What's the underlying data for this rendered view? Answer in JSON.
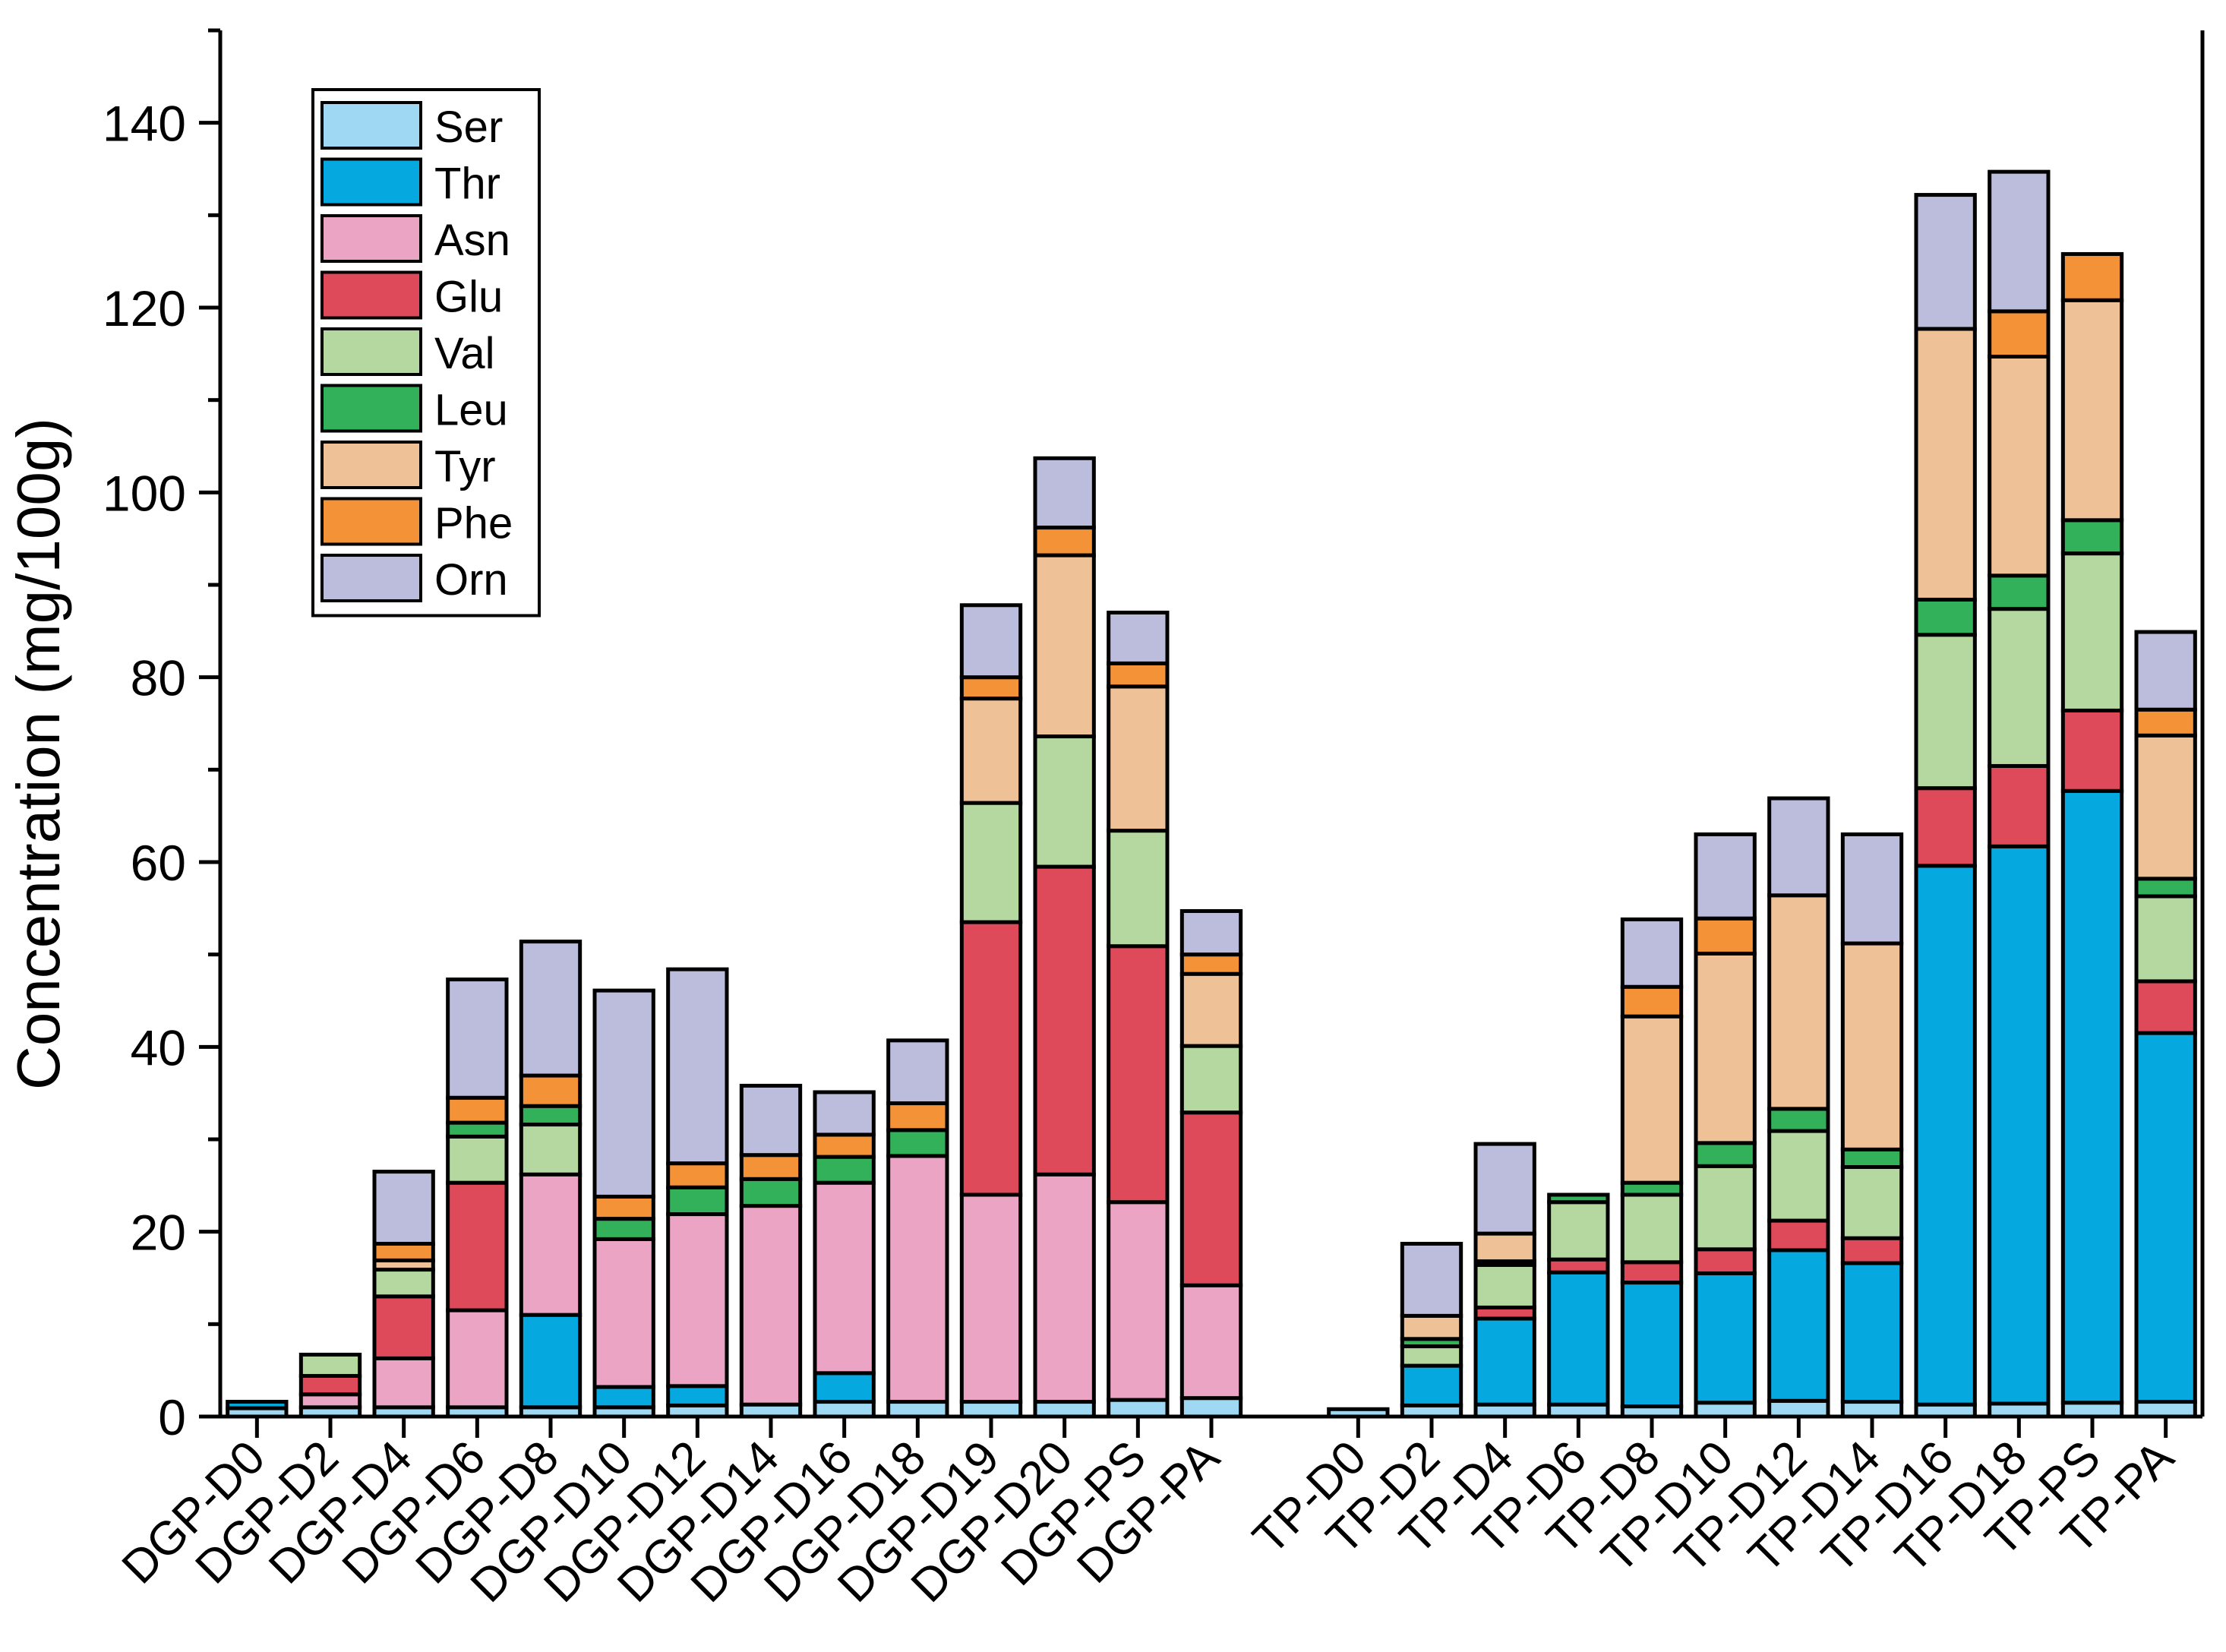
{
  "chart_data": {
    "type": "bar",
    "stacked": true,
    "title": "",
    "xlabel": "",
    "ylabel": "Concentration (mg/100g)",
    "ylim": [
      0,
      150
    ],
    "yticks": [
      0,
      20,
      40,
      60,
      80,
      100,
      120,
      140
    ],
    "grid": false,
    "legend_position": "top-left",
    "categories": [
      "DGP-D0",
      "DGP-D2",
      "DGP-D4",
      "DGP-D6",
      "DGP-D8",
      "DGP-D10",
      "DGP-D12",
      "DGP-D14",
      "DGP-D16",
      "DGP-D18",
      "DGP-D19",
      "DGP-D20",
      "DGP-PS",
      "DGP-PA",
      "",
      "TP-D0",
      "TP-D2",
      "TP-D4",
      "TP-D6",
      "TP-D8",
      "TP-D10",
      "TP-D12",
      "TP-D14",
      "TP-D16",
      "TP-D18",
      "TP-PS",
      "TP-PA"
    ],
    "series": [
      {
        "name": "Ser",
        "color": "#9ED8F3",
        "values": [
          0.9,
          1.0,
          1.0,
          1.0,
          1.0,
          1.0,
          1.2,
          1.3,
          1.6,
          1.6,
          1.6,
          1.6,
          1.8,
          2.0,
          0,
          0.8,
          1.2,
          1.3,
          1.3,
          1.1,
          1.5,
          1.7,
          1.6,
          1.3,
          1.4,
          1.5,
          1.6
        ]
      },
      {
        "name": "Thr",
        "color": "#05A9E0",
        "values": [
          0.7,
          0,
          0,
          0,
          10.0,
          2.2,
          2.1,
          0,
          3.1,
          0,
          0,
          0,
          0,
          0,
          0,
          0,
          4.3,
          9.3,
          14.3,
          13.4,
          14.0,
          16.3,
          15.0,
          58.3,
          60.3,
          66.2,
          39.9
        ]
      },
      {
        "name": "Asn",
        "color": "#EBA4C3",
        "values": [
          0,
          1.4,
          5.3,
          10.5,
          15.2,
          16.0,
          18.6,
          21.5,
          20.6,
          26.6,
          22.4,
          24.6,
          21.4,
          12.2,
          0,
          0,
          0,
          0,
          0,
          0,
          0,
          0,
          0,
          0,
          0,
          0,
          0
        ]
      },
      {
        "name": "Glu",
        "color": "#DE4A5A",
        "values": [
          0,
          2.0,
          6.7,
          13.8,
          0,
          0,
          0,
          0,
          0,
          0,
          29.5,
          33.3,
          27.7,
          18.7,
          0,
          0,
          0,
          1.2,
          1.4,
          2.2,
          2.6,
          3.2,
          2.7,
          8.4,
          8.7,
          8.7,
          5.6
        ]
      },
      {
        "name": "Val",
        "color": "#B5D8A0",
        "values": [
          0,
          2.3,
          2.9,
          5.0,
          5.4,
          0,
          0,
          0,
          0,
          0,
          12.9,
          14.1,
          12.5,
          7.2,
          0,
          0,
          2.1,
          4.6,
          6.2,
          7.3,
          9.0,
          9.7,
          7.7,
          16.6,
          17.0,
          17.0,
          9.2
        ]
      },
      {
        "name": "Leu",
        "color": "#33B15A",
        "values": [
          0,
          0,
          0,
          1.5,
          2.0,
          2.2,
          2.9,
          2.9,
          2.8,
          2.8,
          0,
          0,
          0,
          0,
          0,
          0,
          0.8,
          0.4,
          0.8,
          1.3,
          2.5,
          2.4,
          1.9,
          3.8,
          3.6,
          3.6,
          1.9
        ]
      },
      {
        "name": "Tyr",
        "color": "#EEC196",
        "values": [
          0,
          0,
          1.0,
          0,
          0,
          0,
          0,
          0,
          0,
          0,
          11.3,
          19.6,
          15.6,
          7.8,
          0,
          0,
          2.5,
          3.0,
          0,
          18.0,
          20.5,
          23.1,
          22.3,
          29.3,
          23.7,
          23.8,
          15.5
        ]
      },
      {
        "name": "Phe",
        "color": "#F39237",
        "values": [
          0,
          0,
          1.8,
          2.7,
          3.3,
          2.4,
          2.6,
          2.6,
          2.4,
          2.9,
          2.3,
          3.0,
          2.5,
          2.1,
          0,
          0,
          0,
          0,
          0,
          3.2,
          3.8,
          0,
          0,
          0,
          4.9,
          5.0,
          2.8
        ]
      },
      {
        "name": "Orn",
        "color": "#BCBCDC",
        "values": [
          0,
          0,
          7.8,
          12.8,
          14.5,
          22.3,
          21.0,
          7.5,
          4.6,
          6.8,
          7.8,
          7.5,
          5.5,
          4.7,
          0,
          0,
          7.8,
          9.7,
          0,
          7.3,
          9.1,
          10.5,
          11.8,
          14.5,
          15.1,
          0,
          8.4
        ]
      }
    ]
  }
}
